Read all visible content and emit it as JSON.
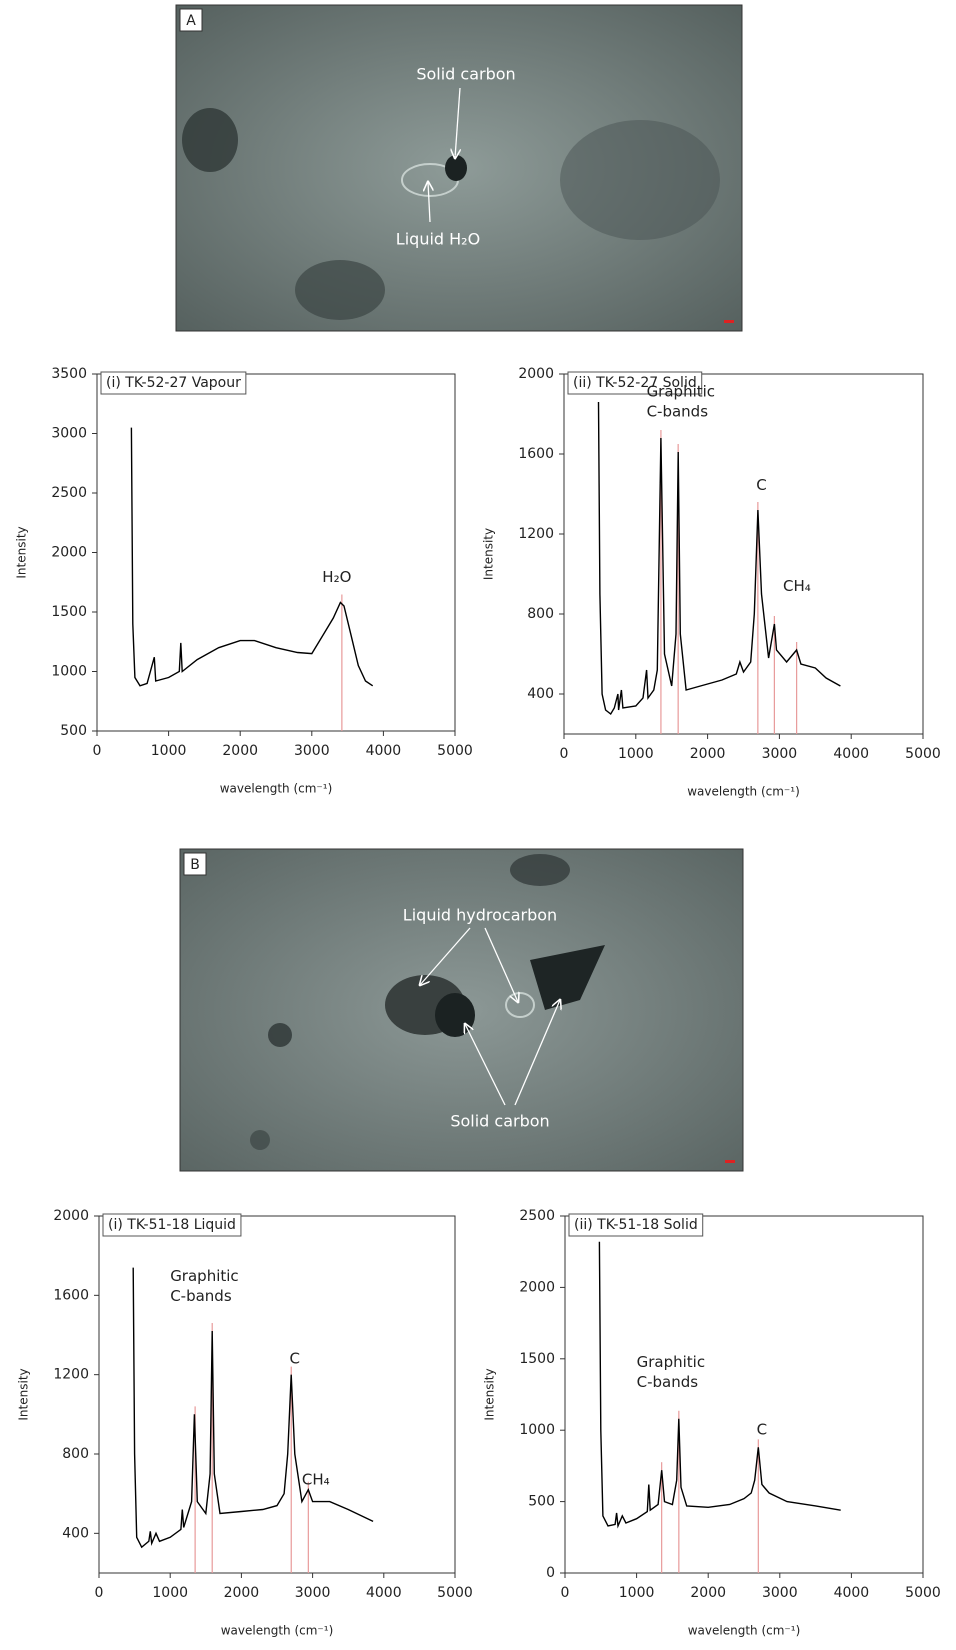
{
  "figure_panels": [
    {
      "label": "A",
      "annotations": [
        "Solid carbon",
        "Liquid H₂O"
      ]
    },
    {
      "label": "B",
      "annotations": [
        "Liquid hydrocarbon",
        "Solid carbon"
      ]
    }
  ],
  "chart_data": [
    {
      "type": "line",
      "title": "(i) TK-52-27 Vapour",
      "xlabel": "wavelength (cm⁻¹)",
      "ylabel": "Intensity",
      "color": "#000000",
      "x": [
        480,
        500,
        530,
        600,
        700,
        800,
        820,
        1000,
        1150,
        1170,
        1190,
        1400,
        1700,
        2000,
        2200,
        2500,
        2800,
        3000,
        3100,
        3300,
        3400,
        3450,
        3550,
        3650,
        3750,
        3850
      ],
      "values": [
        3050,
        1400,
        950,
        880,
        900,
        1120,
        920,
        950,
        1000,
        1240,
        1000,
        1100,
        1200,
        1260,
        1260,
        1200,
        1160,
        1150,
        1250,
        1450,
        1580,
        1550,
        1300,
        1050,
        920,
        880
      ],
      "xlim": [
        0,
        5000
      ],
      "xticks": [
        0,
        1000,
        2000,
        3000,
        4000,
        5000
      ],
      "ylim": [
        500,
        3500
      ],
      "yticks": [
        500,
        1000,
        1500,
        2000,
        2500,
        3000,
        3500
      ],
      "peak_lines": {
        "x": [
          3420
        ],
        "color": "#e89a9a"
      },
      "annotations": [
        {
          "lines": [
            "H₂O"
          ]
        }
      ]
    },
    {
      "type": "line",
      "title": "(ii) TK-52-27 Solid",
      "xlabel": "wavelength (cm⁻¹)",
      "ylabel": "Intensity",
      "color": "#000000",
      "x": [
        480,
        500,
        530,
        580,
        650,
        700,
        750,
        760,
        800,
        820,
        1000,
        1100,
        1150,
        1170,
        1250,
        1300,
        1350,
        1400,
        1500,
        1560,
        1590,
        1620,
        1700,
        1900,
        2200,
        2400,
        2450,
        2500,
        2600,
        2650,
        2700,
        2750,
        2850,
        2930,
        2960,
        3100,
        3240,
        3300,
        3500,
        3650,
        3850
      ],
      "values": [
        1860,
        900,
        400,
        320,
        300,
        330,
        400,
        320,
        420,
        330,
        340,
        380,
        520,
        380,
        420,
        520,
        1680,
        600,
        440,
        700,
        1610,
        700,
        420,
        440,
        470,
        500,
        560,
        510,
        560,
        800,
        1320,
        900,
        580,
        750,
        620,
        560,
        620,
        550,
        530,
        480,
        440
      ],
      "xlim": [
        0,
        5000
      ],
      "xticks": [
        0,
        1000,
        2000,
        3000,
        4000,
        5000
      ],
      "ylim": [
        200,
        2000
      ],
      "yticks": [
        400,
        800,
        1200,
        1600,
        2000
      ],
      "peak_lines": {
        "x": [
          1350,
          1590,
          2700,
          2930,
          3240
        ],
        "color": "#e89a9a"
      },
      "annotations": [
        {
          "lines": [
            "Graphitic",
            "C-bands"
          ]
        },
        {
          "lines": [
            "C"
          ]
        },
        {
          "lines": [
            "CH₄"
          ]
        }
      ]
    },
    {
      "type": "line",
      "title": "(i) TK-51-18 Liquid",
      "xlabel": "wavelength (cm⁻¹)",
      "ylabel": "Intensity",
      "color": "#000000",
      "x": [
        480,
        500,
        530,
        600,
        700,
        720,
        740,
        800,
        850,
        1000,
        1150,
        1170,
        1190,
        1300,
        1340,
        1380,
        1500,
        1560,
        1590,
        1620,
        1700,
        2000,
        2300,
        2500,
        2600,
        2650,
        2700,
        2750,
        2850,
        2940,
        3000,
        3240,
        3500,
        3850
      ],
      "values": [
        1740,
        800,
        380,
        330,
        360,
        410,
        350,
        400,
        360,
        380,
        420,
        520,
        430,
        560,
        1000,
        560,
        500,
        700,
        1420,
        700,
        500,
        510,
        520,
        540,
        600,
        800,
        1200,
        800,
        560,
        620,
        560,
        560,
        520,
        460
      ],
      "xlim": [
        0,
        5000
      ],
      "xticks": [
        0,
        1000,
        2000,
        3000,
        4000,
        5000
      ],
      "ylim": [
        200,
        2000
      ],
      "yticks": [
        400,
        800,
        1200,
        1600,
        2000
      ],
      "peak_lines": {
        "x": [
          1350,
          1590,
          2700,
          2940
        ],
        "color": "#e89a9a"
      },
      "annotations": [
        {
          "lines": [
            "Graphitic",
            "C-bands"
          ]
        },
        {
          "lines": [
            "C"
          ]
        },
        {
          "lines": [
            "CH₄"
          ]
        }
      ]
    },
    {
      "type": "line",
      "title": "(ii) TK-51-18 Solid",
      "xlabel": "wavelength (cm⁻¹)",
      "ylabel": "Intensity",
      "color": "#000000",
      "x": [
        480,
        500,
        530,
        600,
        700,
        720,
        740,
        800,
        850,
        1000,
        1150,
        1170,
        1190,
        1300,
        1350,
        1390,
        1500,
        1560,
        1590,
        1620,
        1700,
        2000,
        2300,
        2500,
        2600,
        2650,
        2700,
        2750,
        2850,
        3100,
        3500,
        3850
      ],
      "values": [
        2320,
        1000,
        400,
        330,
        340,
        420,
        330,
        400,
        350,
        380,
        430,
        620,
        440,
        480,
        720,
        500,
        480,
        650,
        1080,
        600,
        470,
        460,
        480,
        520,
        560,
        650,
        880,
        620,
        560,
        500,
        470,
        440
      ],
      "xlim": [
        0,
        5000
      ],
      "xticks": [
        0,
        1000,
        2000,
        3000,
        4000,
        5000
      ],
      "ylim": [
        0,
        2500
      ],
      "yticks": [
        0,
        500,
        1000,
        1500,
        2000,
        2500
      ],
      "peak_lines": {
        "x": [
          1350,
          1590,
          2700
        ],
        "color": "#e89a9a"
      },
      "annotations": [
        {
          "lines": [
            "Graphitic",
            "C-bands"
          ]
        },
        {
          "lines": [
            "C"
          ]
        }
      ]
    }
  ]
}
